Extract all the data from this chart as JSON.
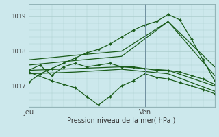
{
  "xlabel": "Pression niveau de la mer( hPa )",
  "bg_color": "#cce8ec",
  "grid_color": "#aacccc",
  "line_color": "#1a5c1a",
  "vline_color": "#7090a0",
  "ylim": [
    1016.4,
    1019.35
  ],
  "xlim": [
    0,
    48
  ],
  "yticks": [
    1017,
    1018,
    1019
  ],
  "xtick_labels": [
    "Jeu",
    "Ven"
  ],
  "xtick_pos": [
    0,
    30
  ],
  "vertical_line_x": 30,
  "series": [
    {
      "x": [
        0,
        3,
        6,
        9,
        12,
        15,
        18,
        21,
        24,
        27,
        30,
        33,
        36,
        39,
        42,
        45,
        48
      ],
      "y": [
        1017.1,
        1017.35,
        1017.5,
        1017.65,
        1017.8,
        1017.95,
        1018.05,
        1018.2,
        1018.4,
        1018.6,
        1018.75,
        1018.85,
        1019.05,
        1018.9,
        1018.35,
        1017.75,
        1017.15
      ],
      "marker": "D",
      "ms": 2.0,
      "lw": 0.9
    },
    {
      "x": [
        0,
        12,
        24,
        36,
        48
      ],
      "y": [
        1017.75,
        1017.88,
        1018.0,
        1018.85,
        1017.55
      ],
      "marker": null,
      "ms": 2,
      "lw": 0.9
    },
    {
      "x": [
        0,
        12,
        24,
        36,
        48
      ],
      "y": [
        1017.6,
        1017.73,
        1017.85,
        1018.85,
        1017.3
      ],
      "marker": null,
      "ms": 2,
      "lw": 0.9
    },
    {
      "x": [
        0,
        6,
        9,
        12,
        15,
        18,
        21,
        24,
        27,
        30,
        33,
        36,
        39,
        42,
        45,
        48
      ],
      "y": [
        1017.4,
        1017.15,
        1017.05,
        1016.95,
        1016.7,
        1016.45,
        1016.7,
        1017.0,
        1017.15,
        1017.35,
        1017.25,
        1017.2,
        1017.1,
        1017.0,
        1016.9,
        1016.78
      ],
      "marker": "D",
      "ms": 2.0,
      "lw": 0.9
    },
    {
      "x": [
        0,
        3,
        6,
        9,
        12,
        15,
        18,
        21,
        24,
        27,
        30,
        33,
        36,
        39,
        42,
        45,
        48
      ],
      "y": [
        1017.45,
        1017.6,
        1017.3,
        1017.55,
        1017.65,
        1017.55,
        1017.6,
        1017.65,
        1017.55,
        1017.55,
        1017.5,
        1017.45,
        1017.45,
        1017.4,
        1017.3,
        1017.2,
        1017.05
      ],
      "marker": "D",
      "ms": 2.0,
      "lw": 0.9
    },
    {
      "x": [
        0,
        12,
        24,
        36,
        48
      ],
      "y": [
        1017.45,
        1017.5,
        1017.55,
        1017.45,
        1017.0
      ],
      "marker": null,
      "ms": 2,
      "lw": 0.9
    },
    {
      "x": [
        0,
        12,
        24,
        36,
        48
      ],
      "y": [
        1017.35,
        1017.4,
        1017.48,
        1017.35,
        1016.85
      ],
      "marker": null,
      "ms": 2,
      "lw": 0.9
    }
  ]
}
